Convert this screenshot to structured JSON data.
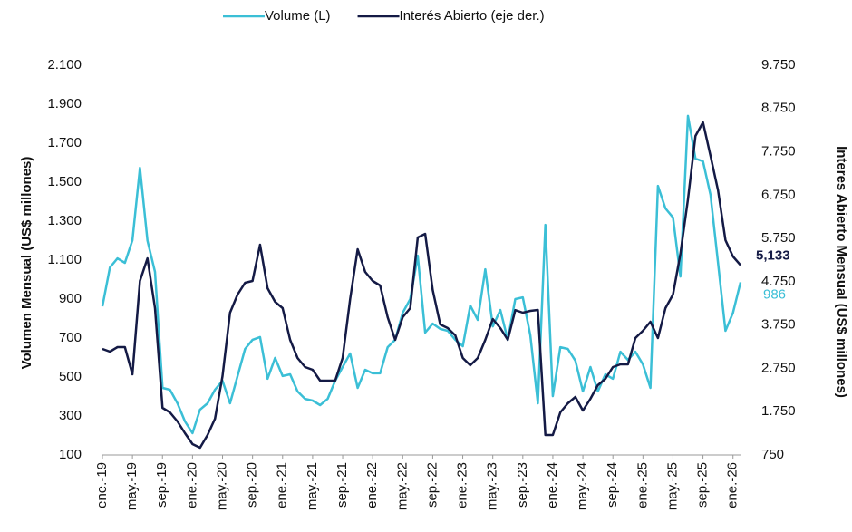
{
  "chart_data": {
    "type": "line",
    "y_label": "Volumen Mensual (US$ millones)",
    "y2_label": "Interes Abierto Mensual (US$ millones)",
    "categories": [
      "ene.-19",
      null,
      null,
      null,
      "may.-19",
      null,
      null,
      null,
      "sep.-19",
      null,
      null,
      null,
      "ene.-20",
      null,
      null,
      null,
      "may.-20",
      null,
      null,
      null,
      "sep.-20",
      null,
      null,
      null,
      "ene.-21",
      null,
      null,
      null,
      "may.-21",
      null,
      null,
      null,
      "sep.-21",
      null,
      null,
      null,
      "ene.-22",
      null,
      null,
      null,
      "may.-22",
      null,
      null,
      null,
      "sep.-22",
      null,
      null,
      null,
      "ene.-23",
      null,
      null,
      null,
      "may.-23",
      null,
      null,
      null,
      "sep.-23",
      null,
      null,
      null,
      "ene.-24",
      null,
      null,
      null,
      "may.-24",
      null,
      null,
      null,
      "sep.-24",
      null,
      null,
      null,
      "ene.-25",
      null,
      null,
      null,
      "may.-25",
      null,
      null,
      null,
      "sep.-25",
      null,
      null,
      null,
      "ene.-26",
      null
    ],
    "ylim": [
      100,
      2100
    ],
    "yticks": [
      100,
      300,
      500,
      700,
      900,
      {
        "value": 1100,
        "label": "1.100"
      },
      {
        "value": 1300,
        "label": "1.300"
      },
      {
        "value": 1500,
        "label": "1.500"
      },
      {
        "value": 1700,
        "label": "1.700"
      },
      {
        "value": 1900,
        "label": "1.900"
      },
      {
        "value": 2100,
        "label": "2.100"
      }
    ],
    "y2lim": [
      750,
      9750
    ],
    "y2ticks": [
      750,
      {
        "value": 1750,
        "label": "1.750"
      },
      {
        "value": 2750,
        "label": "2.750"
      },
      {
        "value": 3750,
        "label": "3.750"
      },
      {
        "value": 4750,
        "label": "4.750"
      },
      {
        "value": 5750,
        "label": "5.750"
      },
      {
        "value": 6750,
        "label": "6.750"
      },
      {
        "value": 7750,
        "label": "7.750"
      },
      {
        "value": 8750,
        "label": "8.750"
      },
      {
        "value": 9750,
        "label": "9.750"
      }
    ],
    "grid": false,
    "series": [
      {
        "name": "Volume (L)",
        "color": "#3bbfd6",
        "label_last": true,
        "values": [
          863,
          1063,
          1109,
          1086,
          1202,
          1574,
          1200,
          1040,
          444,
          435,
          365,
          272,
          212,
          333,
          365,
          435,
          481,
          365,
          505,
          644,
          691,
          705,
          491,
          598,
          505,
          514,
          426,
          388,
          379,
          356,
          388,
          481,
          551,
          621,
          444,
          537,
          519,
          519,
          653,
          691,
          830,
          900,
          1123,
          728,
          774,
          747,
          737,
          691,
          658,
          867,
          793,
          1053,
          760,
          844,
          691,
          900,
          909,
          714,
          365,
          1281,
          402,
          653,
          644,
          584,
          426,
          551,
          426,
          514,
          491,
          630,
          588,
          630,
          565,
          444,
          1481,
          1365,
          1319,
          1016,
          1840,
          1621,
          1607,
          1435,
          1086,
          737,
          830,
          986
        ]
      },
      {
        "name": "Interés Abierto (eje der.)",
        "color": "#141a45",
        "axis": "y2",
        "label_last": true,
        "values": [
          3199,
          3136,
          3241,
          3241,
          2613,
          4769,
          5292,
          4141,
          1838,
          1734,
          1524,
          1252,
          1001,
          917,
          1210,
          1587,
          2571,
          4036,
          4455,
          4727,
          4769,
          5606,
          4601,
          4287,
          4141,
          3408,
          2990,
          2780,
          2717,
          2466,
          2466,
          2466,
          2990,
          4350,
          5501,
          4978,
          4769,
          4664,
          3931,
          3408,
          3931,
          4141,
          5773,
          5857,
          4559,
          3764,
          3680,
          3513,
          2990,
          2822,
          2990,
          3408,
          3889,
          3680,
          3408,
          4094,
          4036,
          4078,
          4099,
          1210,
          1210,
          1734,
          1943,
          2090,
          1776,
          2048,
          2362,
          2508,
          2780,
          2843,
          2843,
          3450,
          3617,
          3827,
          3450,
          4141,
          4455,
          5397,
          6652,
          8117,
          8431,
          7657,
          6861,
          5711,
          5334,
          5133
        ],
        "value_labels": [
          null,
          null,
          null,
          null,
          null,
          null,
          null,
          null,
          null,
          null,
          null,
          null,
          null,
          null,
          null,
          null,
          null,
          null,
          null,
          null,
          null,
          null,
          null,
          null,
          null,
          null,
          null,
          null,
          null,
          null,
          null,
          null,
          null,
          null,
          null,
          null,
          null,
          null,
          null,
          null,
          null,
          null,
          null,
          null,
          null,
          null,
          null,
          null,
          null,
          null,
          null,
          null,
          null,
          null,
          null,
          null,
          null,
          null,
          null,
          null,
          null,
          null,
          null,
          null,
          null,
          null,
          null,
          null,
          null,
          null,
          null,
          null,
          null,
          null,
          null,
          null,
          null,
          null,
          null,
          null,
          null,
          null,
          null,
          null,
          null,
          "5,133"
        ]
      }
    ]
  }
}
